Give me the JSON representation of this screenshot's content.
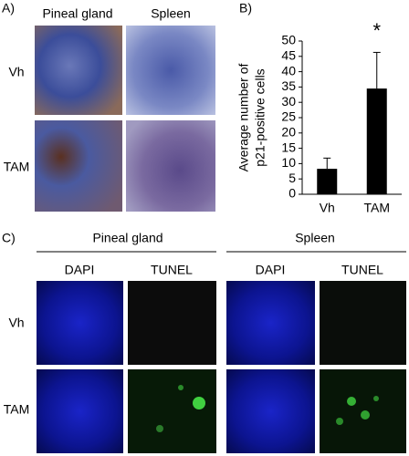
{
  "panel_a": {
    "label": "A)",
    "columns": [
      "Pineal gland",
      "Spleen"
    ],
    "rows": [
      "Vh",
      "TAM"
    ]
  },
  "chart_data": {
    "type": "bar",
    "panel_label": "B)",
    "y_label": [
      "Average number of",
      "p21-positive cells"
    ],
    "categories": [
      "Vh",
      "TAM"
    ],
    "values": [
      8.3,
      34.5
    ],
    "errors": [
      3.5,
      11.8
    ],
    "color": "#000000",
    "ylim": [
      0,
      50
    ],
    "yticks": [
      0,
      5,
      10,
      15,
      20,
      25,
      30,
      35,
      40,
      45,
      50
    ],
    "annotations": [
      {
        "category": 1,
        "text": "*"
      }
    ]
  },
  "panel_c": {
    "label": "C)",
    "groups": [
      "Pineal gland",
      "Spleen"
    ],
    "columns": [
      "DAPI",
      "TUNEL",
      "DAPI",
      "TUNEL"
    ],
    "rows": [
      "Vh",
      "TAM"
    ]
  }
}
